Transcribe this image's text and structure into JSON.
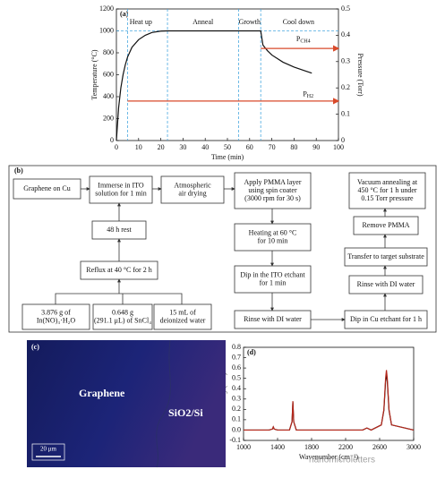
{
  "chart_data": [
    {
      "type": "line",
      "panel": "(a)",
      "xlabel": "Time (min)",
      "ylabel": "Temperature (°C)",
      "y2label": "Pressure (Torr)",
      "xlim": [
        0,
        100
      ],
      "xticks": [
        0,
        10,
        20,
        30,
        40,
        50,
        60,
        70,
        80,
        90,
        100
      ],
      "ylim": [
        0,
        1200
      ],
      "yticks": [
        0,
        200,
        400,
        600,
        800,
        1000,
        1200
      ],
      "y2lim": [
        0,
        0.5
      ],
      "y2ticks": [
        0,
        0.1,
        0.2,
        0.3,
        0.4,
        0.5
      ],
      "phases": [
        "Heat up",
        "Anneal",
        "Growth",
        "Cool down"
      ],
      "phase_boundaries": [
        5,
        23,
        55,
        65
      ],
      "reference_line": 1000,
      "reference_color": "#4aa8e0",
      "series": [
        {
          "color": "#111111",
          "x": [
            0,
            1,
            2,
            3,
            4,
            5,
            7,
            10,
            13,
            16,
            20,
            23,
            65,
            66,
            68,
            70,
            75,
            80,
            85,
            88
          ],
          "values": [
            0,
            300,
            480,
            600,
            690,
            760,
            850,
            920,
            960,
            985,
            998,
            1000,
            1000,
            870,
            820,
            780,
            715,
            670,
            635,
            615
          ]
        },
        {
          "label": {
            "text": "P",
            "sub": "CH4"
          },
          "color": "#d94a2b",
          "axis": "y2",
          "x": [
            65,
            100
          ],
          "values": [
            0.35,
            0.35
          ]
        },
        {
          "label": {
            "text": "P",
            "sub": "H2"
          },
          "color": "#d94a2b",
          "axis": "y2",
          "x": [
            5,
            100
          ],
          "values": [
            0.15,
            0.15
          ]
        }
      ]
    },
    {
      "type": "line",
      "panel": "(d)",
      "xlabel": "Wavenumber (cm⁻¹)",
      "ylabel": "Intensity (a.u.)",
      "xlim": [
        1000,
        3000
      ],
      "xticks": [
        1000,
        1400,
        1800,
        2200,
        2600,
        3000
      ],
      "ylim": [
        -0.1,
        0.8
      ],
      "yticks": [
        -0.1,
        {
          "value": 0,
          "label": "0.0"
        },
        0.1,
        0.2,
        0.3,
        0.4,
        0.5,
        0.6,
        0.7,
        0.8
      ],
      "series": [
        {
          "color": "#111111",
          "x": [
            1000,
            1300,
            1340,
            1350,
            1360,
            1400,
            1540,
            1570,
            1580,
            1590,
            1620,
            1800,
            2400,
            2450,
            2500,
            2620,
            2650,
            2670,
            2680,
            2690,
            2710,
            2740,
            3000
          ],
          "values": [
            0,
            0,
            0.01,
            0.03,
            0.01,
            0,
            0,
            0.08,
            0.27,
            0.08,
            0,
            0,
            0,
            0.02,
            0,
            0.05,
            0.19,
            0.47,
            0.55,
            0.47,
            0.19,
            0.05,
            0
          ]
        },
        {
          "color": "#b5281c",
          "x": [
            1000,
            1300,
            1340,
            1350,
            1360,
            1400,
            1540,
            1570,
            1580,
            1590,
            1620,
            1800,
            2400,
            2450,
            2500,
            2620,
            2650,
            2670,
            2680,
            2690,
            2710,
            2740,
            3000
          ],
          "values": [
            0,
            0,
            0.01,
            0.03,
            0.01,
            0,
            0,
            0.08,
            0.28,
            0.08,
            0,
            0,
            0,
            0.02,
            0,
            0.05,
            0.2,
            0.5,
            0.58,
            0.5,
            0.2,
            0.05,
            0
          ]
        }
      ]
    }
  ],
  "diagram": {
    "panel": "(b)",
    "nodes": [
      {
        "lines": [
          "Graphene on Cu"
        ]
      },
      {
        "lines": [
          "Immerse in ITO",
          "solution for 1 min"
        ]
      },
      {
        "lines": [
          "Atmospheric",
          "air drying"
        ]
      },
      {
        "lines": [
          "Apply PMMA layer",
          "using spin coater",
          "(3000 rpm for 30 s)"
        ]
      },
      {
        "lines": [
          "Heating at 60 °C",
          "for 10 min"
        ]
      },
      {
        "lines": [
          "Dip in the ITO etchant",
          "for 1 min"
        ]
      },
      {
        "lines": [
          "Rinse with DI water"
        ]
      },
      {
        "lines": [
          "Dip in Cu etchant for 1 h"
        ]
      },
      {
        "lines": [
          "Rinse with DI water"
        ]
      },
      {
        "lines": [
          "Transfer to target substrate"
        ]
      },
      {
        "lines": [
          "Remove PMMA"
        ]
      },
      {
        "lines": [
          "Vacuum annealing at",
          "450 °C for 1 h under",
          "0.15 Torr pressure"
        ]
      },
      {
        "lines": [
          "48 h rest"
        ]
      },
      {
        "lines": [
          "Reflux at 40 °C for 2 h"
        ]
      },
      {
        "lines": [
          "3.876 g of",
          "In(NO)₃·H₂O"
        ]
      },
      {
        "lines": [
          "0.648 g",
          "(291.1 μL) of SnCl₄"
        ]
      },
      {
        "lines": [
          "15 mL of",
          "deionized water"
        ]
      }
    ]
  },
  "image": {
    "panel": "(c)",
    "labels": [
      "Graphene",
      "SiO2/Si"
    ],
    "scale_bar": "20 μm"
  },
  "watermark": "nanomicroletters"
}
